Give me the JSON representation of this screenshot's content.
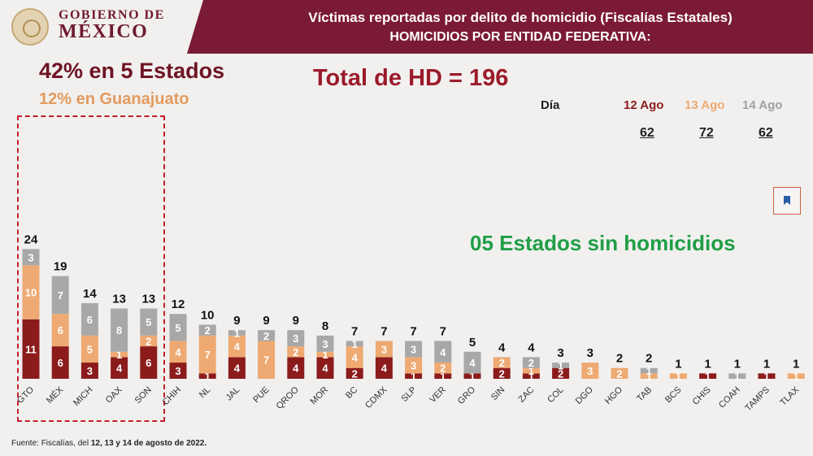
{
  "header": {
    "logo_line1": "GOBIERNO DE",
    "logo_line2": "MÉXICO",
    "title_line1": "Víctimas reportadas por delito de homicidio (Fiscalías Estatales)",
    "title_line2": "HOMICIDIOS POR ENTIDAD FEDERATIVA:"
  },
  "summary": {
    "five_states": "42% en 5 Estados",
    "guanajuato": "12% en Guanajuato",
    "total": "Total de HD = 196",
    "no_homicides": "05 Estados sin homicidios"
  },
  "days": {
    "label": "Día",
    "items": [
      {
        "date": "12 Ago",
        "total": "62"
      },
      {
        "date": "13 Ago",
        "total": "72"
      },
      {
        "date": "14 Ago",
        "total": "62"
      }
    ]
  },
  "footnote": {
    "prefix": "Fuente: Fiscalías, del",
    "dates": "12, 13 y 14 de agosto de 2022."
  },
  "colors": {
    "day1": "#8c1c1c",
    "day2": "#eeaa72",
    "day3": "#a8a8a8",
    "header_bg": "#7b1a34",
    "accent_green": "#1f9e45"
  },
  "chart_data": {
    "type": "bar",
    "stacked": true,
    "categories": [
      "GTO",
      "MÉX",
      "MICH",
      "OAX",
      "SON",
      "CHIH",
      "NL",
      "JAL",
      "PUE",
      "QROO",
      "MOR",
      "BC",
      "CDMX",
      "SLP",
      "VER",
      "GRO",
      "SIN",
      "ZAC",
      "COL",
      "DGO",
      "HGO",
      "TAB",
      "BCS",
      "CHIS",
      "COAH",
      "TAMPS",
      "TLAX"
    ],
    "series": [
      {
        "name": "12 Ago",
        "values": [
          11,
          6,
          3,
          4,
          6,
          3,
          1,
          4,
          0,
          4,
          4,
          2,
          4,
          1,
          1,
          1,
          2,
          1,
          2,
          0,
          0,
          0,
          0,
          1,
          0,
          1,
          0
        ]
      },
      {
        "name": "13 Ago",
        "values": [
          10,
          6,
          5,
          1,
          2,
          4,
          7,
          4,
          7,
          2,
          1,
          4,
          3,
          3,
          2,
          0,
          2,
          1,
          0,
          3,
          2,
          1,
          1,
          0,
          0,
          0,
          1
        ]
      },
      {
        "name": "14 Ago",
        "values": [
          3,
          7,
          6,
          8,
          5,
          5,
          2,
          1,
          2,
          3,
          3,
          1,
          0,
          3,
          4,
          4,
          0,
          2,
          1,
          0,
          0,
          1,
          0,
          0,
          1,
          0,
          0
        ]
      }
    ],
    "totals": [
      24,
      19,
      14,
      13,
      13,
      12,
      10,
      9,
      9,
      9,
      8,
      7,
      7,
      7,
      7,
      5,
      4,
      4,
      3,
      3,
      2,
      2,
      1,
      1,
      1,
      1,
      1
    ],
    "xlabel": "",
    "ylabel": "",
    "grid": false
  }
}
